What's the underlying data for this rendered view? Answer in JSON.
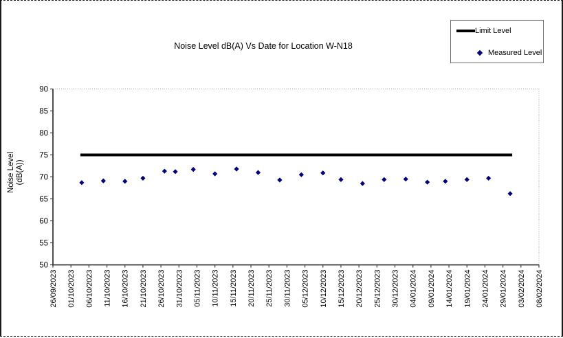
{
  "chart_data": {
    "type": "scatter",
    "title": "Noise Level dB(A) Vs Date for Location W-N18",
    "ylabel_lines": [
      "Noise Level",
      "(dB(A))"
    ],
    "xlabel": "",
    "y_axis": {
      "min": 50,
      "max": 90,
      "step": 5,
      "tick_labels": [
        "50",
        "55",
        "60",
        "65",
        "70",
        "75",
        "80",
        "85",
        "90"
      ]
    },
    "x_axis": {
      "tick_interval_days": 5,
      "tick_labels": [
        "26/09/2023",
        "01/10/2023",
        "06/10/2023",
        "11/10/2023",
        "16/10/2023",
        "21/10/2023",
        "26/10/2023",
        "31/10/2023",
        "05/11/2023",
        "10/11/2023",
        "15/11/2023",
        "20/11/2023",
        "25/11/2023",
        "30/11/2023",
        "05/12/2023",
        "10/12/2023",
        "15/12/2023",
        "20/12/2023",
        "25/12/2023",
        "30/12/2023",
        "04/01/2024",
        "09/01/2024",
        "14/01/2024",
        "19/01/2024",
        "24/01/2024",
        "29/01/2024",
        "03/02/2024",
        "08/02/2024"
      ]
    },
    "legend": {
      "position": "top-right",
      "entries": [
        {
          "label": "Limit Level",
          "type": "line",
          "color": "#000000"
        },
        {
          "label": "Measured Level",
          "type": "diamond",
          "color": "#000080"
        }
      ]
    },
    "series": [
      {
        "name": "Limit Level",
        "type": "line",
        "color": "#000000",
        "value": 75,
        "from": "04/10/2023",
        "to": "31/01/2024"
      },
      {
        "name": "Measured Level",
        "type": "scatter",
        "color": "#000080",
        "points": [
          {
            "date": "04/10/2023",
            "value": 68.7
          },
          {
            "date": "10/10/2023",
            "value": 69.1
          },
          {
            "date": "16/10/2023",
            "value": 69.0
          },
          {
            "date": "21/10/2023",
            "value": 69.7
          },
          {
            "date": "27/10/2023",
            "value": 71.3
          },
          {
            "date": "30/10/2023",
            "value": 71.2
          },
          {
            "date": "04/11/2023",
            "value": 71.7
          },
          {
            "date": "10/11/2023",
            "value": 70.7
          },
          {
            "date": "16/11/2023",
            "value": 71.8
          },
          {
            "date": "22/11/2023",
            "value": 71.0
          },
          {
            "date": "28/11/2023",
            "value": 69.3
          },
          {
            "date": "04/12/2023",
            "value": 70.5
          },
          {
            "date": "10/12/2023",
            "value": 70.9
          },
          {
            "date": "15/12/2023",
            "value": 69.4
          },
          {
            "date": "21/12/2023",
            "value": 68.5
          },
          {
            "date": "27/12/2023",
            "value": 69.4
          },
          {
            "date": "02/01/2024",
            "value": 69.5
          },
          {
            "date": "08/01/2024",
            "value": 68.8
          },
          {
            "date": "13/01/2024",
            "value": 69.0
          },
          {
            "date": "19/01/2024",
            "value": 69.4
          },
          {
            "date": "25/01/2024",
            "value": 69.7
          },
          {
            "date": "31/01/2024",
            "value": 66.2
          }
        ]
      }
    ]
  }
}
